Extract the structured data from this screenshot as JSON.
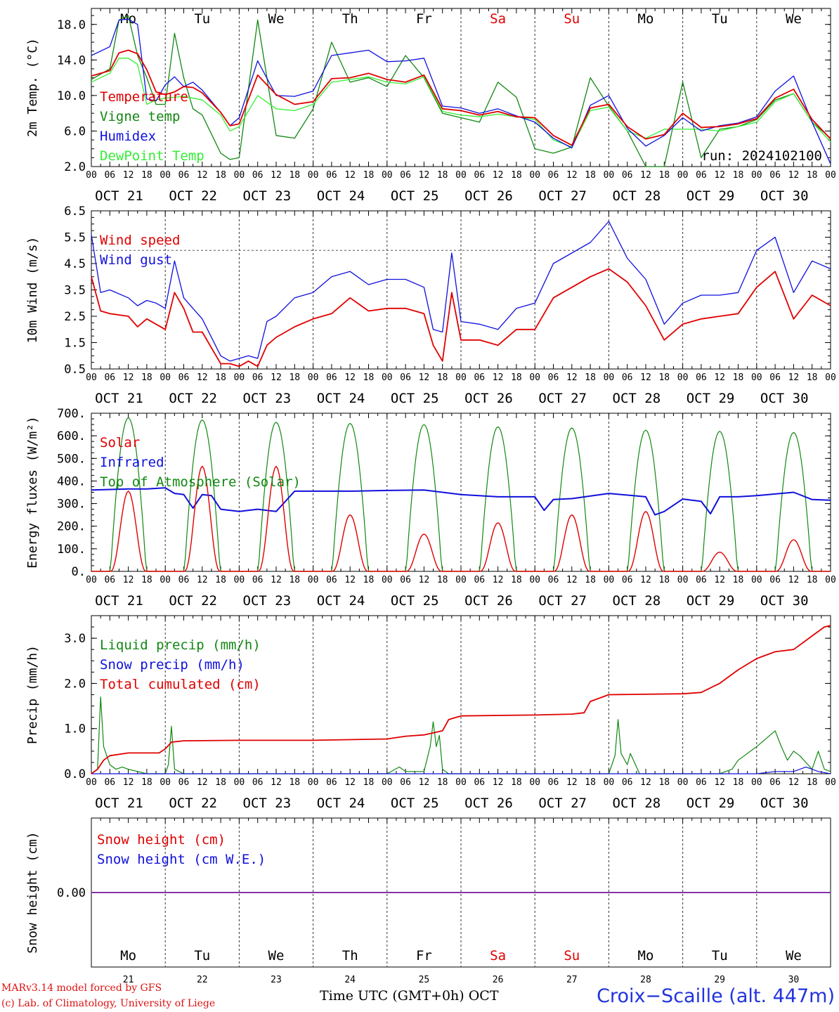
{
  "colors": {
    "red": "#e00000",
    "green": "#118811",
    "blue": "#1010dd",
    "lightgreen": "#33ee33",
    "purple": "#8833aa"
  },
  "day_names": [
    "Mo",
    "Tu",
    "We",
    "Th",
    "Fr",
    "Sa",
    "Su",
    "Mo",
    "Tu",
    "We"
  ],
  "weekend_days": [
    5,
    6
  ],
  "date_labels": [
    "OCT 21",
    "OCT 22",
    "OCT 23",
    "OCT 24",
    "OCT 25",
    "OCT 26",
    "OCT 27",
    "OCT 28",
    "OCT 29",
    "OCT 30"
  ],
  "bottom_dates": [
    "21",
    "22",
    "23",
    "24",
    "25",
    "26",
    "27",
    "28",
    "29",
    "30"
  ],
  "hour_ticks": [
    "00",
    "06",
    "12",
    "18"
  ],
  "last_tick": "00",
  "footer": {
    "credit_line1": "MARv3.14 model forced by GFS",
    "credit_line2": "(c) Lab. of Climatology, University of Liege",
    "x_caption": "Time UTC (GMT+0h) OCT",
    "station": "Croix−Scaille (alt. 447m)"
  },
  "chart_data": [
    {
      "type": "line",
      "ylabel": "2m Temp. (°C)",
      "ylim": [
        2.0,
        19.8
      ],
      "yticks": [
        "2.0",
        "6.0",
        "10.0",
        "14.0",
        "18.0"
      ],
      "ytick_values": [
        2,
        6,
        10,
        14,
        18
      ],
      "run_label": "run: 2024102100",
      "x_hours": [
        0,
        6,
        9,
        12,
        15,
        18,
        21,
        24,
        27,
        30,
        33,
        36,
        42,
        45,
        48,
        54,
        60,
        66,
        72,
        78,
        84,
        90,
        96,
        102,
        108,
        114,
        120,
        126,
        132,
        138,
        144,
        150,
        156,
        162,
        168,
        174,
        180,
        186,
        192,
        198,
        204,
        210,
        216,
        222,
        228,
        234,
        240
      ],
      "series": [
        {
          "name": "Temperature",
          "color": "red",
          "values": [
            12.2,
            12.8,
            14.8,
            15.1,
            14.7,
            12.9,
            10.4,
            10.1,
            10.4,
            11.0,
            10.9,
            10.3,
            8.1,
            6.6,
            6.8,
            12.3,
            10.1,
            9.0,
            9.3,
            11.9,
            12.0,
            12.5,
            11.8,
            11.5,
            12.3,
            8.5,
            8.3,
            7.8,
            8.2,
            7.6,
            7.5,
            5.5,
            4.4,
            8.6,
            9.0,
            6.5,
            5.1,
            5.6,
            8.0,
            6.4,
            6.5,
            6.8,
            7.4,
            9.7,
            10.7,
            7.3,
            5.1
          ]
        },
        {
          "name": "Vigne temp",
          "color": "green",
          "values": [
            11.8,
            13.0,
            18.5,
            19.0,
            14.5,
            12.0,
            9.0,
            9.0,
            17.0,
            12.0,
            8.5,
            7.8,
            3.5,
            2.8,
            3.0,
            18.5,
            5.5,
            5.2,
            8.5,
            16.0,
            11.5,
            12.0,
            11.0,
            14.5,
            12.0,
            8.0,
            7.5,
            7.0,
            11.5,
            9.8,
            4.0,
            3.5,
            4.2,
            12.0,
            8.8,
            6.0,
            2.0,
            2.0,
            11.5,
            3.0,
            6.2,
            6.5,
            7.3,
            9.5,
            10.2,
            7.0,
            5.2
          ]
        },
        {
          "name": "Humidex",
          "color": "blue",
          "values": [
            14.5,
            15.5,
            18.5,
            18.6,
            18.0,
            9.6,
            9.4,
            11.2,
            12.1,
            11.0,
            11.5,
            10.6,
            8.1,
            6.6,
            7.5,
            13.9,
            10.0,
            9.9,
            10.5,
            14.5,
            14.8,
            15.1,
            13.8,
            13.9,
            14.2,
            8.8,
            8.6,
            8.0,
            8.5,
            7.7,
            7.0,
            5.2,
            4.1,
            8.9,
            10.0,
            6.3,
            4.3,
            5.5,
            7.5,
            6.0,
            6.6,
            6.9,
            7.6,
            10.5,
            12.2,
            7.0,
            2.3
          ]
        },
        {
          "name": "DewPoint Temp",
          "color": "lightgreen",
          "values": [
            11.5,
            12.5,
            14.2,
            14.2,
            13.5,
            9.0,
            9.5,
            9.7,
            9.8,
            9.9,
            9.7,
            9.5,
            7.8,
            6.0,
            6.5,
            10.0,
            8.5,
            8.3,
            9.0,
            11.5,
            11.8,
            12.1,
            11.5,
            11.3,
            12.1,
            8.2,
            7.8,
            7.6,
            7.9,
            7.6,
            7.3,
            5.0,
            4.2,
            8.3,
            8.7,
            6.0,
            5.2,
            6.2,
            6.2,
            6.2,
            6.0,
            6.5,
            7.0,
            9.3,
            10.2,
            7.0,
            4.8
          ]
        }
      ]
    },
    {
      "type": "line",
      "ylabel": "10m Wind (m/s)",
      "ylim": [
        0.5,
        6.5
      ],
      "yticks": [
        "0.5",
        "1.5",
        "2.5",
        "3.5",
        "4.5",
        "5.5",
        "6.5"
      ],
      "ytick_values": [
        0.5,
        1.5,
        2.5,
        3.5,
        4.5,
        5.5,
        6.5
      ],
      "ref_line": 5.0,
      "x_hours": [
        0,
        3,
        6,
        12,
        15,
        18,
        21,
        24,
        27,
        30,
        33,
        36,
        42,
        45,
        48,
        51,
        54,
        57,
        60,
        66,
        72,
        78,
        84,
        90,
        96,
        102,
        108,
        111,
        114,
        117,
        120,
        126,
        132,
        138,
        144,
        150,
        156,
        162,
        168,
        174,
        180,
        186,
        192,
        198,
        204,
        210,
        216,
        222,
        228,
        234,
        240
      ],
      "series": [
        {
          "name": "Wind speed",
          "color": "red",
          "values": [
            4.0,
            2.7,
            2.6,
            2.5,
            2.1,
            2.4,
            2.2,
            2.0,
            3.4,
            2.8,
            1.9,
            1.9,
            0.7,
            0.7,
            0.6,
            0.8,
            0.6,
            1.4,
            1.7,
            2.1,
            2.4,
            2.6,
            3.2,
            2.7,
            2.8,
            2.8,
            2.6,
            1.4,
            0.8,
            3.4,
            1.6,
            1.6,
            1.4,
            2.0,
            2.0,
            3.2,
            3.6,
            4.0,
            4.3,
            3.8,
            2.9,
            1.6,
            2.2,
            2.4,
            2.5,
            2.6,
            3.6,
            4.2,
            2.4,
            3.3,
            2.9
          ]
        },
        {
          "name": "Wind gust",
          "color": "blue",
          "values": [
            5.6,
            3.4,
            3.5,
            3.2,
            2.9,
            3.1,
            3.0,
            2.8,
            4.6,
            3.2,
            2.8,
            2.4,
            1.0,
            0.8,
            0.9,
            1.0,
            0.9,
            2.3,
            2.5,
            3.2,
            3.4,
            4.0,
            4.2,
            3.7,
            3.9,
            3.9,
            3.6,
            2.0,
            1.9,
            4.9,
            2.3,
            2.2,
            2.0,
            2.8,
            3.0,
            4.5,
            4.9,
            5.3,
            6.1,
            4.7,
            3.9,
            2.2,
            3.0,
            3.3,
            3.3,
            3.4,
            5.0,
            5.5,
            3.4,
            4.6,
            4.3
          ]
        }
      ]
    },
    {
      "type": "line",
      "ylabel": "Energy fluxes (W/m²)",
      "ylim": [
        0,
        700
      ],
      "yticks": [
        "0.",
        "100.",
        "200.",
        "300.",
        "400.",
        "500.",
        "600.",
        "700."
      ],
      "ytick_values": [
        0,
        100,
        200,
        300,
        400,
        500,
        600,
        700
      ],
      "peaks_hour": 12,
      "day_length_hours": 11.5,
      "series": [
        {
          "name": "Solar",
          "color": "red",
          "daily_peaks": [
            355,
            465,
            465,
            250,
            165,
            215,
            250,
            265,
            85,
            140
          ]
        },
        {
          "name": "Infrared",
          "color": "blue",
          "x_hours": [
            0,
            12,
            18,
            24,
            27,
            30,
            33,
            36,
            39,
            42,
            48,
            54,
            60,
            66,
            72,
            84,
            96,
            108,
            120,
            132,
            144,
            147,
            150,
            156,
            168,
            180,
            183,
            186,
            192,
            198,
            201,
            204,
            210,
            216,
            228,
            234,
            240
          ],
          "values": [
            360,
            365,
            365,
            370,
            345,
            340,
            280,
            340,
            335,
            275,
            265,
            275,
            265,
            355,
            355,
            355,
            358,
            360,
            340,
            330,
            330,
            270,
            318,
            322,
            345,
            330,
            250,
            265,
            320,
            310,
            255,
            330,
            330,
            335,
            350,
            318,
            315
          ]
        },
        {
          "name": "Top of Atmosphere (Solar)",
          "color": "green",
          "daily_peaks": [
            680,
            670,
            660,
            655,
            650,
            640,
            635,
            625,
            620,
            615
          ]
        }
      ]
    },
    {
      "type": "line",
      "ylabel": "Precip (mm/h)",
      "ylim": [
        0,
        3.5
      ],
      "yticks": [
        "0.0",
        "1.0",
        "2.0",
        "3.0"
      ],
      "ytick_values": [
        0,
        1,
        2,
        3
      ],
      "series": [
        {
          "name": "Liquid precip (mm/h)",
          "color": "green",
          "x_hours": [
            0,
            2,
            3,
            4,
            6,
            8,
            10,
            12,
            18,
            21,
            24,
            25,
            26,
            27,
            30,
            36,
            96,
            100,
            102,
            108,
            110,
            111,
            112,
            113,
            114,
            116,
            120,
            168,
            170,
            171,
            172,
            174,
            175,
            178,
            192,
            204,
            208,
            210,
            212,
            216,
            222,
            224,
            226,
            228,
            230,
            234,
            236,
            238,
            240
          ],
          "values": [
            0,
            0.1,
            1.7,
            0.6,
            0.2,
            0.1,
            0.15,
            0.1,
            0,
            0,
            0,
            0.2,
            1.05,
            0.1,
            0,
            0,
            0,
            0.15,
            0.05,
            0.05,
            0.6,
            1.15,
            0.6,
            0.85,
            0.1,
            0,
            0,
            0,
            0.4,
            1.2,
            0.45,
            0.2,
            0.45,
            0,
            0,
            0,
            0.1,
            0.3,
            0.4,
            0.6,
            0.95,
            0.6,
            0.3,
            0.5,
            0.4,
            0.1,
            0.5,
            0.1,
            0.05
          ]
        },
        {
          "name": "Snow precip (mm/h)",
          "color": "blue",
          "x_hours": [
            0,
            216,
            222,
            228,
            232,
            234,
            236,
            240
          ],
          "values": [
            0,
            0,
            0.05,
            0.05,
            0.15,
            0.1,
            0.05,
            0
          ]
        },
        {
          "name": "Total cumulated (cm)",
          "color": "red",
          "x_hours": [
            0,
            2,
            4,
            6,
            12,
            18,
            22,
            24,
            26,
            30,
            48,
            72,
            96,
            102,
            108,
            114,
            116,
            120,
            144,
            156,
            160,
            162,
            168,
            192,
            198,
            204,
            210,
            216,
            222,
            228,
            234,
            238,
            240
          ],
          "values": [
            0,
            0.1,
            0.3,
            0.4,
            0.46,
            0.46,
            0.46,
            0.55,
            0.7,
            0.73,
            0.74,
            0.74,
            0.77,
            0.83,
            0.86,
            0.95,
            1.2,
            1.28,
            1.3,
            1.32,
            1.35,
            1.6,
            1.75,
            1.77,
            1.8,
            2.0,
            2.3,
            2.55,
            2.7,
            2.75,
            3.05,
            3.25,
            3.28
          ]
        }
      ]
    },
    {
      "type": "line",
      "ylabel": "Snow height (cm)",
      "yticks": [
        "0.00"
      ],
      "series": [
        {
          "name": "Snow height (cm)",
          "color": "red",
          "x_hours": [
            0,
            240
          ],
          "values": [
            0,
            0
          ]
        },
        {
          "name": "Snow height (cm W.E.)",
          "color": "blue",
          "x_hours": [
            0,
            240
          ],
          "values": [
            0,
            0
          ]
        }
      ]
    }
  ]
}
